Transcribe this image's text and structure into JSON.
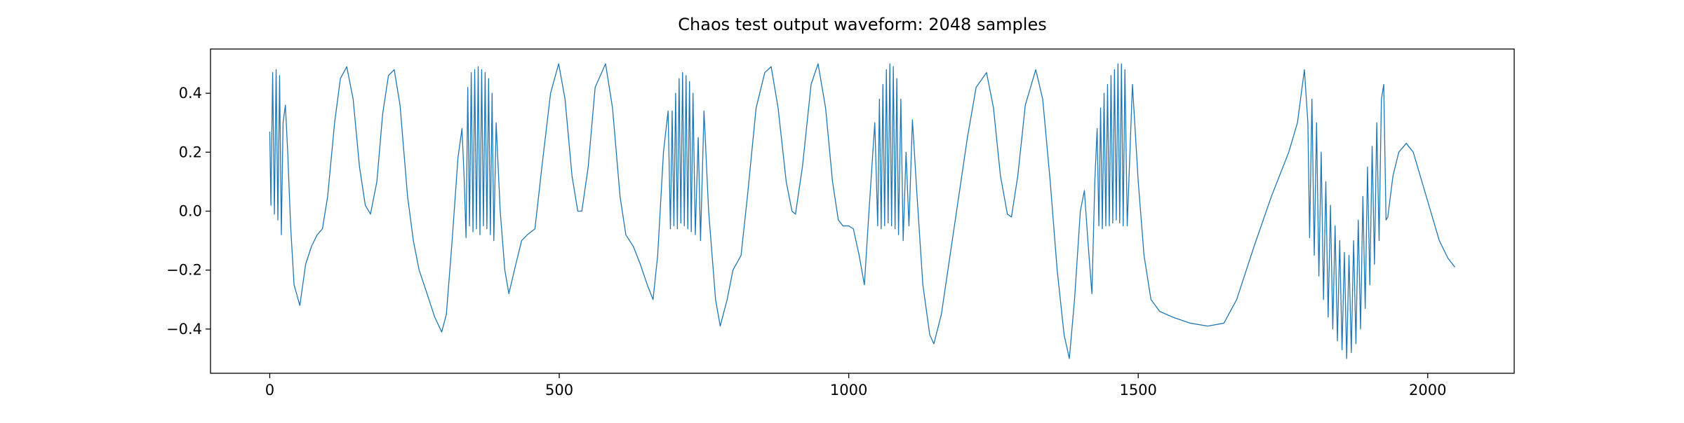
{
  "chart_data": {
    "type": "line",
    "title": "Chaos test output waveform: 2048 samples",
    "color": "#1f77b4",
    "xlim": [
      -102.35,
      2149.35
    ],
    "ylim": [
      -0.55,
      0.55
    ],
    "xticks": [
      0,
      500,
      1000,
      1500,
      2000
    ],
    "yticks": [
      {
        "value": -0.4,
        "label": "−0.4"
      },
      {
        "value": -0.2,
        "label": "−0.2"
      },
      {
        "value": 0,
        "label": "0.0"
      },
      0.2,
      0.4
    ],
    "x": [
      0,
      2,
      5,
      8,
      11,
      14,
      17,
      20,
      23,
      27,
      31,
      36,
      42,
      52,
      62,
      72,
      82,
      91,
      100,
      112,
      122,
      133,
      144,
      155,
      165,
      174,
      185,
      195,
      205,
      215,
      225,
      238,
      248,
      258,
      270,
      285,
      297,
      305,
      315,
      325,
      332,
      336,
      339,
      342,
      345,
      348,
      351,
      354,
      357,
      360,
      363,
      366,
      369,
      372,
      375,
      378,
      381,
      384,
      387,
      391,
      398,
      406,
      413,
      425,
      435,
      445,
      458,
      470,
      485,
      499,
      510,
      522,
      532,
      539,
      550,
      562,
      580,
      592,
      605,
      615,
      628,
      640,
      652,
      662,
      670,
      680,
      688,
      692,
      695,
      698,
      701,
      704,
      707,
      710,
      713,
      716,
      719,
      722,
      725,
      728,
      731,
      735,
      740,
      744,
      750,
      758,
      770,
      778,
      790,
      800,
      814,
      825,
      840,
      855,
      866,
      878,
      892,
      902,
      908,
      920,
      935,
      947,
      960,
      972,
      982,
      990,
      1000,
      1008,
      1018,
      1027,
      1035,
      1045,
      1050,
      1053,
      1056,
      1059,
      1062,
      1065,
      1068,
      1071,
      1074,
      1077,
      1080,
      1083,
      1086,
      1090,
      1094,
      1099,
      1104,
      1110,
      1118,
      1128,
      1140,
      1147,
      1160,
      1175,
      1190,
      1205,
      1220,
      1238,
      1250,
      1262,
      1274,
      1281,
      1292,
      1305,
      1323,
      1335,
      1348,
      1360,
      1372,
      1381,
      1390,
      1400,
      1407,
      1413,
      1420,
      1425,
      1429,
      1432,
      1435,
      1438,
      1441,
      1444,
      1447,
      1450,
      1453,
      1456,
      1459,
      1462,
      1465,
      1468,
      1471,
      1474,
      1477,
      1481,
      1490,
      1500,
      1510,
      1522,
      1537,
      1560,
      1590,
      1620,
      1648,
      1670,
      1700,
      1730,
      1760,
      1775,
      1787,
      1793,
      1796,
      1800,
      1804,
      1808,
      1812,
      1816,
      1820,
      1824,
      1828,
      1832,
      1836,
      1840,
      1844,
      1848,
      1852,
      1856,
      1860,
      1864,
      1868,
      1872,
      1876,
      1880,
      1884,
      1888,
      1892,
      1896,
      1900,
      1904,
      1908,
      1912,
      1916,
      1920,
      1924,
      1928,
      1931,
      1940,
      1950,
      1963,
      1975,
      1990,
      2005,
      2020,
      2035,
      2047
    ],
    "values": [
      0.27,
      0.02,
      0.47,
      -0.01,
      0.48,
      -0.03,
      0.46,
      -0.08,
      0.3,
      0.36,
      0.2,
      -0.05,
      -0.25,
      -0.32,
      -0.18,
      -0.12,
      -0.08,
      -0.06,
      0.05,
      0.3,
      0.45,
      0.49,
      0.38,
      0.15,
      0.02,
      -0.01,
      0.1,
      0.33,
      0.46,
      0.48,
      0.36,
      0.05,
      -0.1,
      -0.2,
      -0.27,
      -0.36,
      -0.41,
      -0.35,
      -0.1,
      0.18,
      0.28,
      0.1,
      -0.09,
      0.42,
      -0.05,
      0.47,
      -0.07,
      0.48,
      -0.06,
      0.49,
      -0.08,
      0.48,
      -0.05,
      0.47,
      -0.06,
      0.45,
      -0.08,
      0.4,
      -0.1,
      0.3,
      0.0,
      -0.2,
      -0.28,
      -0.18,
      -0.1,
      -0.08,
      -0.06,
      0.15,
      0.4,
      0.5,
      0.38,
      0.12,
      0.0,
      0.0,
      0.15,
      0.42,
      0.5,
      0.35,
      0.05,
      -0.08,
      -0.12,
      -0.18,
      -0.25,
      -0.3,
      -0.15,
      0.2,
      0.34,
      -0.06,
      0.34,
      -0.05,
      0.4,
      -0.06,
      0.45,
      -0.04,
      0.47,
      -0.05,
      0.46,
      -0.06,
      0.44,
      -0.07,
      0.4,
      -0.08,
      0.25,
      -0.1,
      0.34,
      0.0,
      -0.3,
      -0.39,
      -0.3,
      -0.2,
      -0.15,
      0.05,
      0.35,
      0.47,
      0.49,
      0.35,
      0.1,
      0.0,
      -0.01,
      0.15,
      0.43,
      0.5,
      0.35,
      0.1,
      -0.03,
      -0.05,
      -0.05,
      -0.06,
      -0.15,
      -0.25,
      0.0,
      0.3,
      -0.05,
      0.38,
      -0.06,
      0.43,
      -0.05,
      0.48,
      -0.04,
      0.5,
      -0.05,
      0.49,
      -0.06,
      0.45,
      -0.08,
      0.38,
      -0.1,
      0.2,
      -0.05,
      0.31,
      0.05,
      -0.25,
      -0.42,
      -0.45,
      -0.35,
      -0.15,
      0.05,
      0.25,
      0.42,
      0.47,
      0.35,
      0.12,
      -0.01,
      -0.02,
      0.12,
      0.36,
      0.48,
      0.38,
      0.1,
      -0.2,
      -0.42,
      -0.5,
      -0.3,
      0.0,
      0.07,
      -0.1,
      -0.28,
      0.1,
      0.28,
      -0.05,
      0.35,
      -0.06,
      0.4,
      -0.05,
      0.43,
      -0.05,
      0.46,
      -0.04,
      0.48,
      -0.03,
      0.5,
      -0.04,
      0.5,
      -0.05,
      0.48,
      -0.05,
      0.43,
      0.1,
      -0.15,
      -0.3,
      -0.34,
      -0.36,
      -0.38,
      -0.39,
      -0.38,
      -0.3,
      -0.12,
      0.05,
      0.2,
      0.3,
      0.48,
      0.3,
      -0.09,
      0.38,
      -0.15,
      0.3,
      -0.22,
      0.2,
      -0.3,
      0.1,
      -0.36,
      0.02,
      -0.4,
      -0.05,
      -0.44,
      -0.1,
      -0.47,
      -0.14,
      -0.5,
      -0.15,
      -0.48,
      -0.1,
      -0.45,
      -0.03,
      -0.4,
      0.05,
      -0.33,
      0.15,
      -0.25,
      0.22,
      -0.18,
      0.3,
      -0.1,
      0.38,
      0.43,
      -0.03,
      -0.02,
      0.12,
      0.2,
      0.23,
      0.2,
      0.1,
      0.0,
      -0.1,
      -0.16,
      -0.19
    ]
  }
}
